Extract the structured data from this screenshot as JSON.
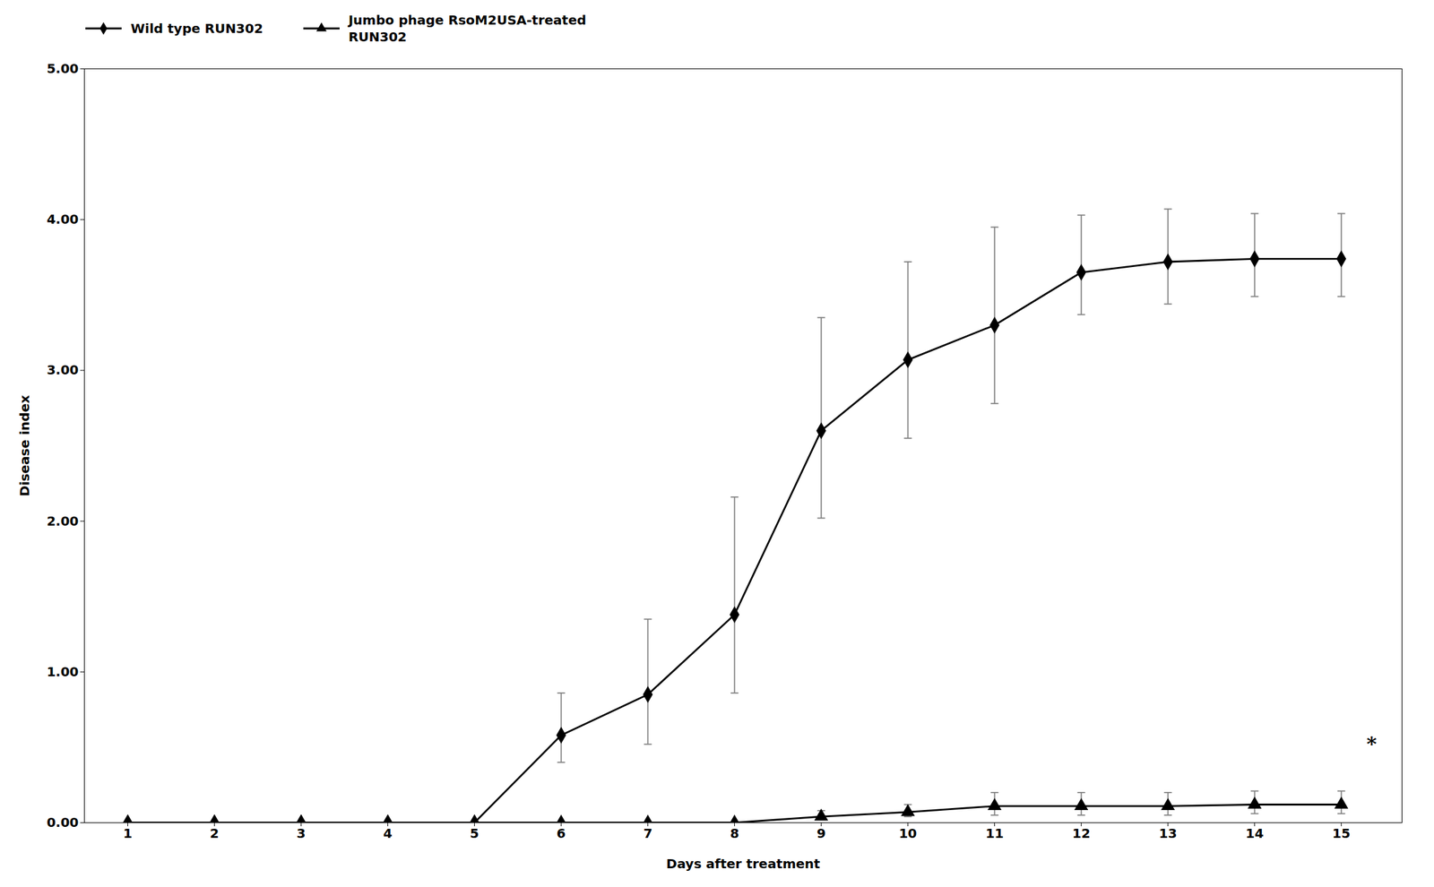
{
  "chart_data": {
    "type": "line",
    "xlabel": "Days after treatment",
    "ylabel": "Disease index",
    "x": [
      1,
      2,
      3,
      4,
      5,
      6,
      7,
      8,
      9,
      10,
      11,
      12,
      13,
      14,
      15
    ],
    "xlim": [
      0.5,
      15.7
    ],
    "xticks": [
      1,
      2,
      3,
      4,
      5,
      6,
      7,
      8,
      9,
      10,
      11,
      12,
      13,
      14,
      15
    ],
    "ylim": [
      0,
      5
    ],
    "yticks": [
      {
        "value": 0,
        "label": "0.00"
      },
      {
        "value": 1,
        "label": "1.00"
      },
      {
        "value": 2,
        "label": "2.00"
      },
      {
        "value": 3,
        "label": "3.00"
      },
      {
        "value": 4,
        "label": "4.00"
      },
      {
        "value": 5,
        "label": "5.00"
      }
    ],
    "grid": false,
    "legend": "upper left",
    "series": [
      {
        "name": "Wild type RUN302",
        "color": "#000000",
        "marker": "diamond",
        "line_style": "solid",
        "values": [
          0.0,
          0.0,
          0.0,
          0.0,
          0.0,
          0.58,
          0.85,
          1.38,
          2.6,
          3.07,
          3.3,
          3.65,
          3.72,
          3.74,
          3.74
        ],
        "error_upper": [
          0.0,
          0.0,
          0.0,
          0.0,
          0.0,
          0.28,
          0.5,
          0.78,
          0.75,
          0.65,
          0.65,
          0.38,
          0.35,
          0.3,
          0.3
        ],
        "error_lower": [
          0.0,
          0.0,
          0.0,
          0.0,
          0.0,
          0.18,
          0.33,
          0.52,
          0.58,
          0.52,
          0.52,
          0.28,
          0.28,
          0.25,
          0.25
        ]
      },
      {
        "name": "Jumbo phage RsoM2USA-treated\nRUN302",
        "color": "#000000",
        "marker": "triangle",
        "line_style": "solid",
        "values": [
          0.0,
          0.0,
          0.0,
          0.0,
          0.0,
          0.0,
          0.0,
          0.0,
          0.04,
          0.07,
          0.11,
          0.11,
          0.11,
          0.12,
          0.12
        ],
        "error_upper": [
          0.0,
          0.0,
          0.0,
          0.0,
          0.0,
          0.0,
          0.0,
          0.0,
          0.04,
          0.05,
          0.09,
          0.09,
          0.09,
          0.09,
          0.09
        ],
        "error_lower": [
          0.0,
          0.0,
          0.0,
          0.0,
          0.0,
          0.0,
          0.0,
          0.0,
          0.02,
          0.03,
          0.06,
          0.06,
          0.06,
          0.06,
          0.06
        ]
      }
    ],
    "annotations": [
      {
        "text": "*",
        "x": 15.35,
        "y": 0.52
      }
    ]
  }
}
